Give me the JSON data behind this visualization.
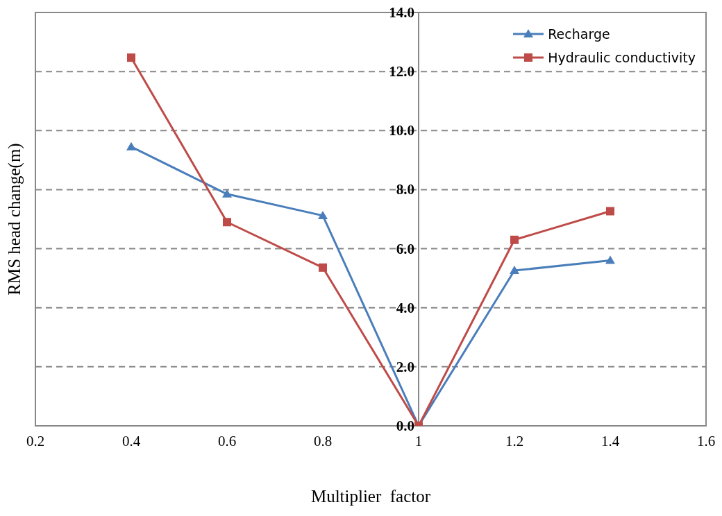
{
  "chart_data": {
    "type": "line",
    "xlabel": "Multiplier  factor",
    "ylabel": "RMS head change(m)",
    "x": [
      0.4,
      0.6,
      0.8,
      1,
      1.2,
      1.4
    ],
    "series": [
      {
        "name": "Recharge",
        "color": "#4a7ebb",
        "marker": "triangle",
        "values": [
          9.45,
          7.85,
          7.12,
          0,
          5.26,
          5.6
        ]
      },
      {
        "name": "Hydraulic conductivity",
        "color": "#be4b48",
        "marker": "square",
        "values": [
          12.47,
          6.9,
          5.36,
          0,
          6.3,
          7.27
        ]
      }
    ],
    "xlim": [
      0.2,
      1.6
    ],
    "xticks": [
      0.2,
      0.4,
      0.6,
      0.8,
      1,
      1.2,
      1.4,
      1.6
    ],
    "ylim": [
      0,
      14
    ],
    "yticks": [
      {
        "value": 0,
        "label": "0.0"
      },
      {
        "value": 2,
        "label": "2.0"
      },
      {
        "value": 4,
        "label": "4.0"
      },
      {
        "value": 6,
        "label": "6.0"
      },
      {
        "value": 8,
        "label": "8.0"
      },
      {
        "value": 10,
        "label": "10.0"
      },
      {
        "value": 12,
        "label": "12.0"
      },
      {
        "value": 14,
        "label": "14.0"
      }
    ],
    "grid": "y",
    "legend": "top right",
    "line_style": "solid"
  }
}
